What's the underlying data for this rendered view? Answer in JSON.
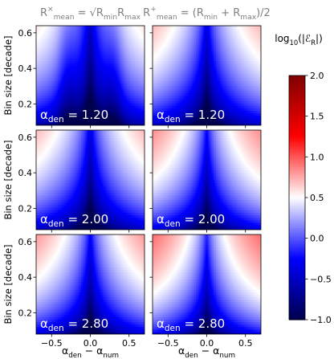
{
  "chart_data": {
    "type": "heatmap",
    "layout": {
      "rows": 3,
      "cols": 2
    },
    "column_titles": [
      {
        "lhs": "R",
        "sup": "×",
        "sub": "mean",
        "rhs": " = √R",
        "rhs_sub1": "min",
        "rhs_mid": "R",
        "rhs_sub2": "max"
      },
      {
        "lhs": "R",
        "sup": "+",
        "sub": "mean",
        "rhs": " = (R",
        "rhs_sub1": "min",
        "rhs_mid": " + R",
        "rhs_sub2": "max",
        "rhs_tail": ")/2"
      }
    ],
    "row_labels": [
      {
        "text": "α",
        "sub": "den",
        "value": " = 1.20",
        "alpha": 1.2
      },
      {
        "text": "α",
        "sub": "den",
        "value": " = 2.00",
        "alpha": 2.0
      },
      {
        "text": "α",
        "sub": "den",
        "value": " = 2.80",
        "alpha": 2.8
      }
    ],
    "xlabel": {
      "a": "α",
      "a_sub": "den",
      "mid": " − α",
      "b_sub": "num"
    },
    "ylabel": "Bin size [decade]",
    "xlim": [
      -0.7,
      0.7
    ],
    "ylim": [
      0.08,
      0.64
    ],
    "x_ticks": [
      -0.5,
      0.0,
      0.5
    ],
    "x_tick_labels": [
      "−0.5",
      "0.0",
      "0.5"
    ],
    "y_ticks": [
      0.2,
      0.4,
      0.6
    ],
    "y_tick_labels": [
      "0.2",
      "0.4",
      "0.6"
    ],
    "colorbar": {
      "label": {
        "pre": "log",
        "pre_sub": "10",
        "mid": "(|ℰ",
        "mid_sub": "R",
        "post": "|)"
      },
      "range": [
        -1.0,
        2.0
      ],
      "ticks": [
        2.0,
        1.5,
        1.0,
        0.5,
        0.0,
        -0.5,
        -1.0
      ],
      "tick_labels": [
        "2.0",
        "1.5",
        "1.0",
        "0.5",
        "0.0",
        "−0.5",
        "−1.0"
      ],
      "colormap": "seismic"
    },
    "contour": {
      "style": "dash-dot",
      "color": "#8fbc8f",
      "level": 1.0
    }
  }
}
